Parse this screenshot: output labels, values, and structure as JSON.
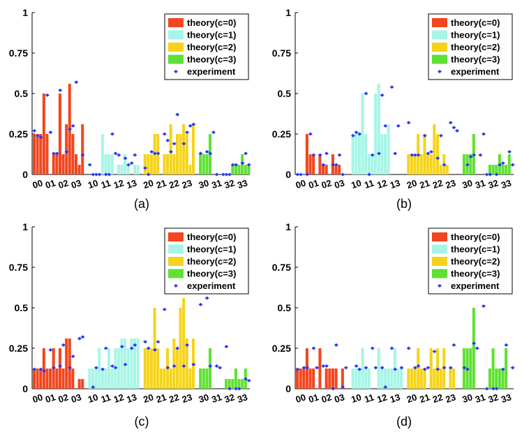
{
  "figure": {
    "panels": [
      "(a)",
      "(b)",
      "(c)",
      "(d)"
    ]
  },
  "colors": {
    "c0": "#f2461f",
    "c1": "#a6f5e6",
    "c2": "#f5d31b",
    "c3": "#5fe034",
    "experiment": "#2b3cf0",
    "axis": "#000000"
  },
  "chart_data": [
    {
      "type": "bar",
      "panel": "(a)",
      "title": "",
      "xlabel": "",
      "ylabel": "",
      "ylim": [
        0,
        1
      ],
      "yticks": [
        0,
        0.25,
        0.5,
        0.75,
        1
      ],
      "ytick_labels": [
        "0",
        "0.25",
        "0.5",
        "0.75",
        "1"
      ],
      "xtick_labels": [
        "00",
        "01",
        "02",
        "03",
        "10",
        "11",
        "12",
        "13",
        "20",
        "21",
        "22",
        "23",
        "30",
        "31",
        "32",
        "33"
      ],
      "legend": {
        "position": "top-right",
        "entries": [
          "theory(c=0)",
          "theory(c=1)",
          "theory(c=2)",
          "theory(c=3)",
          "experiment"
        ]
      },
      "series": [
        {
          "name": "theory(c=0)",
          "group": 0,
          "values": [
            0.25,
            0.25,
            0.25,
            0.5,
            0.25,
            0,
            0.125,
            0.125,
            0.5,
            0.125,
            0.31,
            0.56,
            0.25,
            0.125,
            0.06,
            0.31,
            0,
            0,
            0,
            0
          ]
        },
        {
          "name": "theory(c=1)",
          "group": 1,
          "values": [
            0,
            0,
            0,
            0,
            0.25,
            0.125,
            0.125,
            0.125,
            0,
            0.06,
            0.06,
            0.125,
            0.06,
            0,
            0.06,
            0.06,
            0,
            0,
            0,
            0
          ]
        },
        {
          "name": "theory(c=2)",
          "group": 2,
          "values": [
            0.125,
            0.125,
            0.125,
            0.25,
            0.25,
            0,
            0.125,
            0.125,
            0.31,
            0.125,
            0.25,
            0.25,
            0.31,
            0.25,
            0.06,
            0.31,
            0.25,
            0,
            0,
            0
          ]
        },
        {
          "name": "theory(c=3)",
          "group": 3,
          "values": [
            0.125,
            0.125,
            0.125,
            0.25,
            0,
            0,
            0,
            0,
            0,
            0,
            0.06,
            0.06,
            0.06,
            0.125,
            0.06,
            0.06,
            0.06,
            0.125,
            0,
            0
          ]
        },
        {
          "name": "experiment",
          "marker": "dot",
          "values": [
            0.27,
            0.24,
            0.23,
            0.49,
            0.26,
            0.13,
            0.13,
            0.52,
            0.14,
            0.28,
            0.3,
            0.57,
            0.12,
            0.06,
            0,
            0,
            0,
            0,
            0,
            0.25,
            0.13,
            0.12,
            0.1,
            0.06,
            0.07,
            0.12,
            0.04,
            0,
            0.14,
            0.13,
            0.13,
            0.25,
            0.21,
            0.14,
            0.19,
            0.37,
            0.19,
            0.26,
            0.3,
            0.31,
            0.13,
            0.14,
            0.13,
            0.26,
            0,
            0,
            0,
            0,
            0.06,
            0.06,
            0.07,
            0.13,
            0.06
          ]
        }
      ]
    },
    {
      "type": "bar",
      "panel": "(b)",
      "title": "",
      "xlabel": "",
      "ylabel": "",
      "ylim": [
        0,
        1
      ],
      "yticks": [
        0,
        0.25,
        0.5,
        0.75,
        1
      ],
      "ytick_labels": [
        "0",
        "0.25",
        "0.5",
        "0.75",
        "1"
      ],
      "xtick_labels": [
        "00",
        "01",
        "02",
        "03",
        "10",
        "11",
        "12",
        "13",
        "20",
        "21",
        "22",
        "23",
        "30",
        "31",
        "32",
        "33"
      ],
      "legend": {
        "position": "top-right",
        "entries": [
          "theory(c=0)",
          "theory(c=1)",
          "theory(c=2)",
          "theory(c=3)",
          "experiment"
        ]
      },
      "series": [
        {
          "name": "theory(c=0)",
          "group": 0,
          "values": [
            0,
            0,
            0,
            0.25,
            0.125,
            0.125,
            0,
            0.125,
            0.06,
            0.06,
            0,
            0.125,
            0.06,
            0.06,
            0
          ]
        },
        {
          "name": "theory(c=1)",
          "group": 1,
          "values": [
            0.25,
            0.25,
            0.25,
            0.5,
            0.25,
            0.125,
            0.125,
            0.5,
            0.56,
            0.25,
            0.25,
            0.31,
            0,
            0
          ]
        },
        {
          "name": "theory(c=2)",
          "group": 2,
          "values": [
            0.125,
            0.125,
            0.125,
            0.25,
            0.125,
            0.25,
            0.125,
            0.125,
            0.31,
            0.25,
            0.06,
            0.125,
            0.06,
            0
          ]
        },
        {
          "name": "theory(c=3)",
          "group": 3,
          "values": [
            0.125,
            0.125,
            0.125,
            0.25,
            0,
            0,
            0,
            0,
            0.06,
            0.06,
            0.06,
            0.125,
            0.06,
            0.06,
            0.125
          ]
        },
        {
          "name": "experiment",
          "marker": "dot",
          "values": [
            0,
            0,
            0,
            0.25,
            0.12,
            0.12,
            0.06,
            0.13,
            0.06,
            0.06,
            0.12,
            0,
            0.24,
            0.26,
            0.25,
            0.5,
            0,
            0.12,
            0.13,
            0.49,
            0.3,
            0.54,
            0.13,
            0.3,
            0.32,
            0.12,
            0.12,
            0.12,
            0.24,
            0.13,
            0.14,
            0.1,
            0.24,
            0.06,
            0.32,
            0.29,
            0.27,
            0.06,
            0.11,
            0.12,
            0.12,
            0.25,
            0,
            0,
            0,
            0.06,
            0.07,
            0.14,
            0.06
          ]
        }
      ]
    },
    {
      "type": "bar",
      "panel": "(c)",
      "title": "",
      "xlabel": "",
      "ylabel": "",
      "ylim": [
        0,
        1
      ],
      "yticks": [
        0,
        0.25,
        0.5,
        0.75,
        1
      ],
      "ytick_labels": [
        "0",
        "0.25",
        "0.5",
        "0.75",
        "1"
      ],
      "xtick_labels": [
        "00",
        "01",
        "02",
        "03",
        "10",
        "11",
        "12",
        "13",
        "20",
        "21",
        "22",
        "23",
        "30",
        "31",
        "32",
        "33"
      ],
      "legend": {
        "position": "top-right",
        "entries": [
          "theory(c=0)",
          "theory(c=1)",
          "theory(c=2)",
          "theory(c=3)",
          "experiment"
        ]
      },
      "series": [
        {
          "name": "theory(c=0)",
          "group": 0,
          "values": [
            0.125,
            0.125,
            0.125,
            0.25,
            0.125,
            0.125,
            0.25,
            0.125,
            0.25,
            0.125,
            0.31,
            0.31,
            0.125,
            0,
            0.06,
            0.06
          ]
        },
        {
          "name": "theory(c=1)",
          "group": 1,
          "values": [
            0.125,
            0.125,
            0.125,
            0.25,
            0.125,
            0.125,
            0.25,
            0.125,
            0.25,
            0.25,
            0.31,
            0.31,
            0.25,
            0.31,
            0.31,
            0.31
          ]
        },
        {
          "name": "theory(c=2)",
          "group": 2,
          "values": [
            0.25,
            0.25,
            0.25,
            0.5,
            0.25,
            0.125,
            0.125,
            0.25,
            0.125,
            0.31,
            0.25,
            0.5,
            0.56,
            0.31,
            0.125,
            0.31
          ]
        },
        {
          "name": "theory(c=3)",
          "group": 3,
          "values": [
            0.125,
            0.125,
            0.125,
            0.25,
            0,
            0,
            0,
            0,
            0.06,
            0.06,
            0.06,
            0.125,
            0.06,
            0.06,
            0.125
          ]
        },
        {
          "name": "experiment",
          "marker": "dot",
          "values": [
            0.12,
            0.12,
            0.11,
            0.24,
            0.13,
            0.14,
            0.27,
            0.13,
            0.2,
            0.31,
            0.32,
            0.01,
            0.13,
            0.12,
            0.25,
            0.14,
            0.13,
            0.26,
            0.15,
            0.25,
            0.27,
            0.29,
            0.25,
            0.24,
            0.29,
            0.49,
            0.13,
            0.14,
            0.25,
            0.14,
            0.27,
            0.15,
            0.52,
            0.56,
            0.14,
            0.14,
            0.13,
            0.26,
            0,
            0,
            0,
            0.06,
            0.05
          ]
        }
      ]
    },
    {
      "type": "bar",
      "panel": "(d)",
      "title": "",
      "xlabel": "",
      "ylabel": "",
      "ylim": [
        0,
        1
      ],
      "yticks": [
        0,
        0.25,
        0.5,
        0.75,
        1
      ],
      "ytick_labels": [
        "0",
        "0.25",
        "0.5",
        "0.75",
        "1"
      ],
      "xtick_labels": [
        "00",
        "01",
        "02",
        "03",
        "10",
        "11",
        "12",
        "13",
        "20",
        "21",
        "22",
        "23",
        "30",
        "31",
        "32",
        "33"
      ],
      "legend": {
        "position": "top-right",
        "entries": [
          "theory(c=0)",
          "theory(c=1)",
          "theory(c=2)",
          "theory(c=3)",
          "experiment"
        ]
      },
      "series": [
        {
          "name": "theory(c=0)",
          "group": 0,
          "values": [
            0.125,
            0.125,
            0.125,
            0.25,
            0.125,
            0.125,
            0,
            0.25,
            0,
            0.125,
            0.125,
            0.125,
            0.125,
            0,
            0.125
          ]
        },
        {
          "name": "theory(c=1)",
          "group": 1,
          "values": [
            0.125,
            0.125,
            0.125,
            0.25,
            0.125,
            0.125,
            0,
            0,
            0.25,
            0.125,
            0.125,
            0.125,
            0.125,
            0.25,
            0.125,
            0.125
          ]
        },
        {
          "name": "theory(c=2)",
          "group": 2,
          "values": [
            0.125,
            0.125,
            0.125,
            0.25,
            0.125,
            0.125,
            0,
            0.25,
            0.125,
            0.25,
            0.125,
            0.25,
            0,
            0.125,
            0.125
          ]
        },
        {
          "name": "theory(c=3)",
          "group": 3,
          "values": [
            0.25,
            0.25,
            0.25,
            0.5,
            0,
            0,
            0,
            0,
            0.125,
            0.25,
            0.125,
            0.125,
            0.125,
            0.25
          ]
        },
        {
          "name": "experiment",
          "marker": "dot",
          "values": [
            0.12,
            0.13,
            0.13,
            0.25,
            0.13,
            0.14,
            0.14,
            0,
            0.27,
            0.01,
            0.13,
            0.14,
            0.12,
            0.13,
            0.25,
            0.13,
            0.13,
            0.01,
            0.25,
            0.12,
            0.13,
            0.25,
            0.13,
            0.14,
            0.12,
            0.13,
            0.23,
            0.12,
            0.13,
            0.13,
            0.27,
            0.13,
            0.12,
            0.28,
            0.25,
            0.51,
            0,
            0,
            0,
            0.12,
            0.27,
            0.13
          ]
        }
      ]
    }
  ]
}
